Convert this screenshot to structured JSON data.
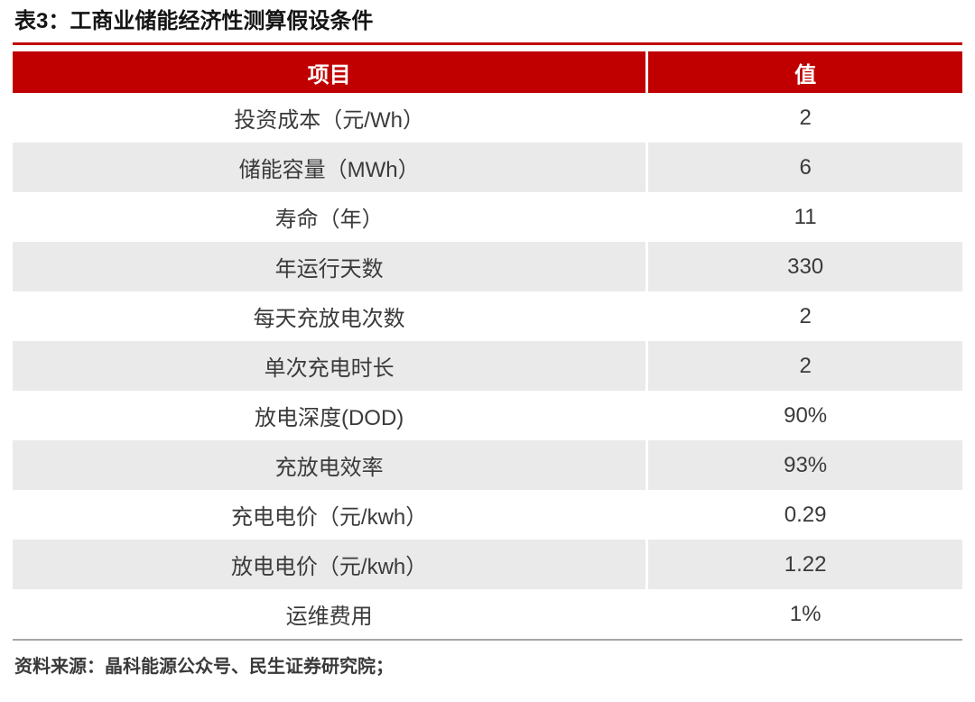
{
  "chart_data": {
    "type": "table",
    "title": "表3：工商业储能经济性测算假设条件",
    "columns": [
      "项目",
      "值"
    ],
    "rows": [
      [
        "投资成本（元/Wh）",
        "2"
      ],
      [
        "储能容量（MWh）",
        "6"
      ],
      [
        "寿命（年）",
        "11"
      ],
      [
        "年运行天数",
        "330"
      ],
      [
        "每天充放电次数",
        "2"
      ],
      [
        "单次充电时长",
        "2"
      ],
      [
        "放电深度(DOD)",
        "90%"
      ],
      [
        "充放电效率",
        "93%"
      ],
      [
        "充电电价（元/kwh）",
        "0.29"
      ],
      [
        "放电电价（元/kwh）",
        "1.22"
      ],
      [
        "运维费用",
        "1%"
      ]
    ],
    "source_note": "资料来源：晶科能源公众号、民生证券研究院；",
    "layout": {
      "header_position": "top",
      "alternating_rows": true,
      "grid": false
    }
  },
  "colors": {
    "header_bg": "#C00000",
    "header_text": "#FFFFFF",
    "alt_row_bg": "#EAEAEA",
    "body_text": "#3A3A3A",
    "title_rule": "#C00000",
    "bottom_rule": "#A6A6A6"
  }
}
